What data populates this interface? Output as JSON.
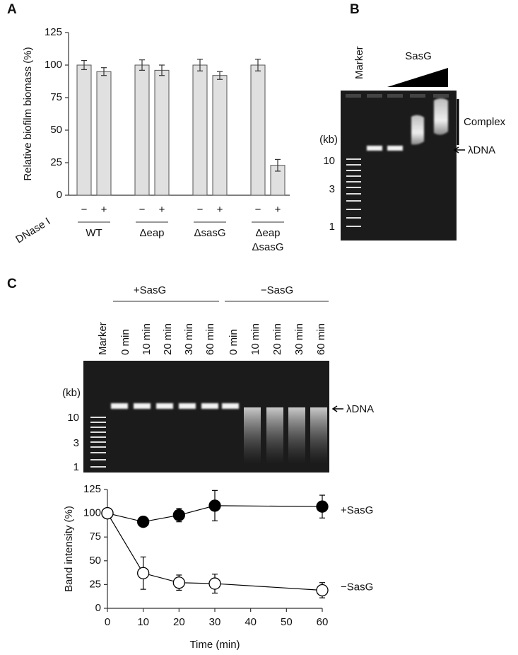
{
  "panel_labels": [
    "A",
    "B",
    "C"
  ],
  "chart_data": [
    {
      "type": "bar",
      "y_label": "Relative biofilm biomass (%)",
      "row_label": "DNase I",
      "categories": [
        "−",
        "+",
        "−",
        "+",
        "−",
        "+",
        "−",
        "+"
      ],
      "groups": [
        "WT",
        "Δeap",
        "ΔsasG",
        "Δeap ΔsasG"
      ],
      "values": [
        100,
        95,
        100,
        96,
        100,
        92,
        100,
        23
      ],
      "errors": [
        3.5,
        3,
        4,
        4,
        4.5,
        3,
        4.5,
        4.5
      ],
      "color": "#e0e0e0",
      "ylim": [
        0,
        125
      ],
      "yticks": [
        0,
        25,
        50,
        75,
        100,
        125
      ]
    },
    {
      "type": "line",
      "x_label": "Time (min)",
      "y_label": "Band intensity (%)",
      "x": [
        0,
        10,
        20,
        30,
        60
      ],
      "series": [
        {
          "name": "+SasG",
          "color": "#000000",
          "values": [
            100,
            91,
            98,
            108,
            107
          ],
          "errors": [
            0,
            3,
            7,
            16,
            12
          ]
        },
        {
          "name": "−SasG",
          "color": "#ffffff",
          "values": [
            100,
            37,
            27,
            26,
            19
          ],
          "errors": [
            0,
            17,
            8,
            10,
            8
          ]
        }
      ],
      "xlim": [
        0,
        60
      ],
      "xticks": [
        0,
        10,
        20,
        30,
        40,
        50,
        60
      ],
      "ylim": [
        0,
        125
      ],
      "yticks": [
        0,
        25,
        50,
        75,
        100,
        125
      ]
    }
  ],
  "gel_b": {
    "marker": "Marker",
    "treatment": "SasG",
    "size_unit": "(kb)",
    "sizes": [
      "10",
      "3",
      "1"
    ],
    "complex": "Complex",
    "band": "λDNA"
  },
  "gel_c": {
    "groups": [
      "+SasG",
      "−SasG"
    ],
    "lanes": [
      "0 min",
      "10 min",
      "20 min",
      "30 min",
      "60 min",
      "0 min",
      "10 min",
      "20 min",
      "30 min",
      "60 min"
    ],
    "marker": "Marker",
    "size_unit": "(kb)",
    "sizes": [
      "10",
      "3",
      "1"
    ],
    "band": "λDNA"
  }
}
